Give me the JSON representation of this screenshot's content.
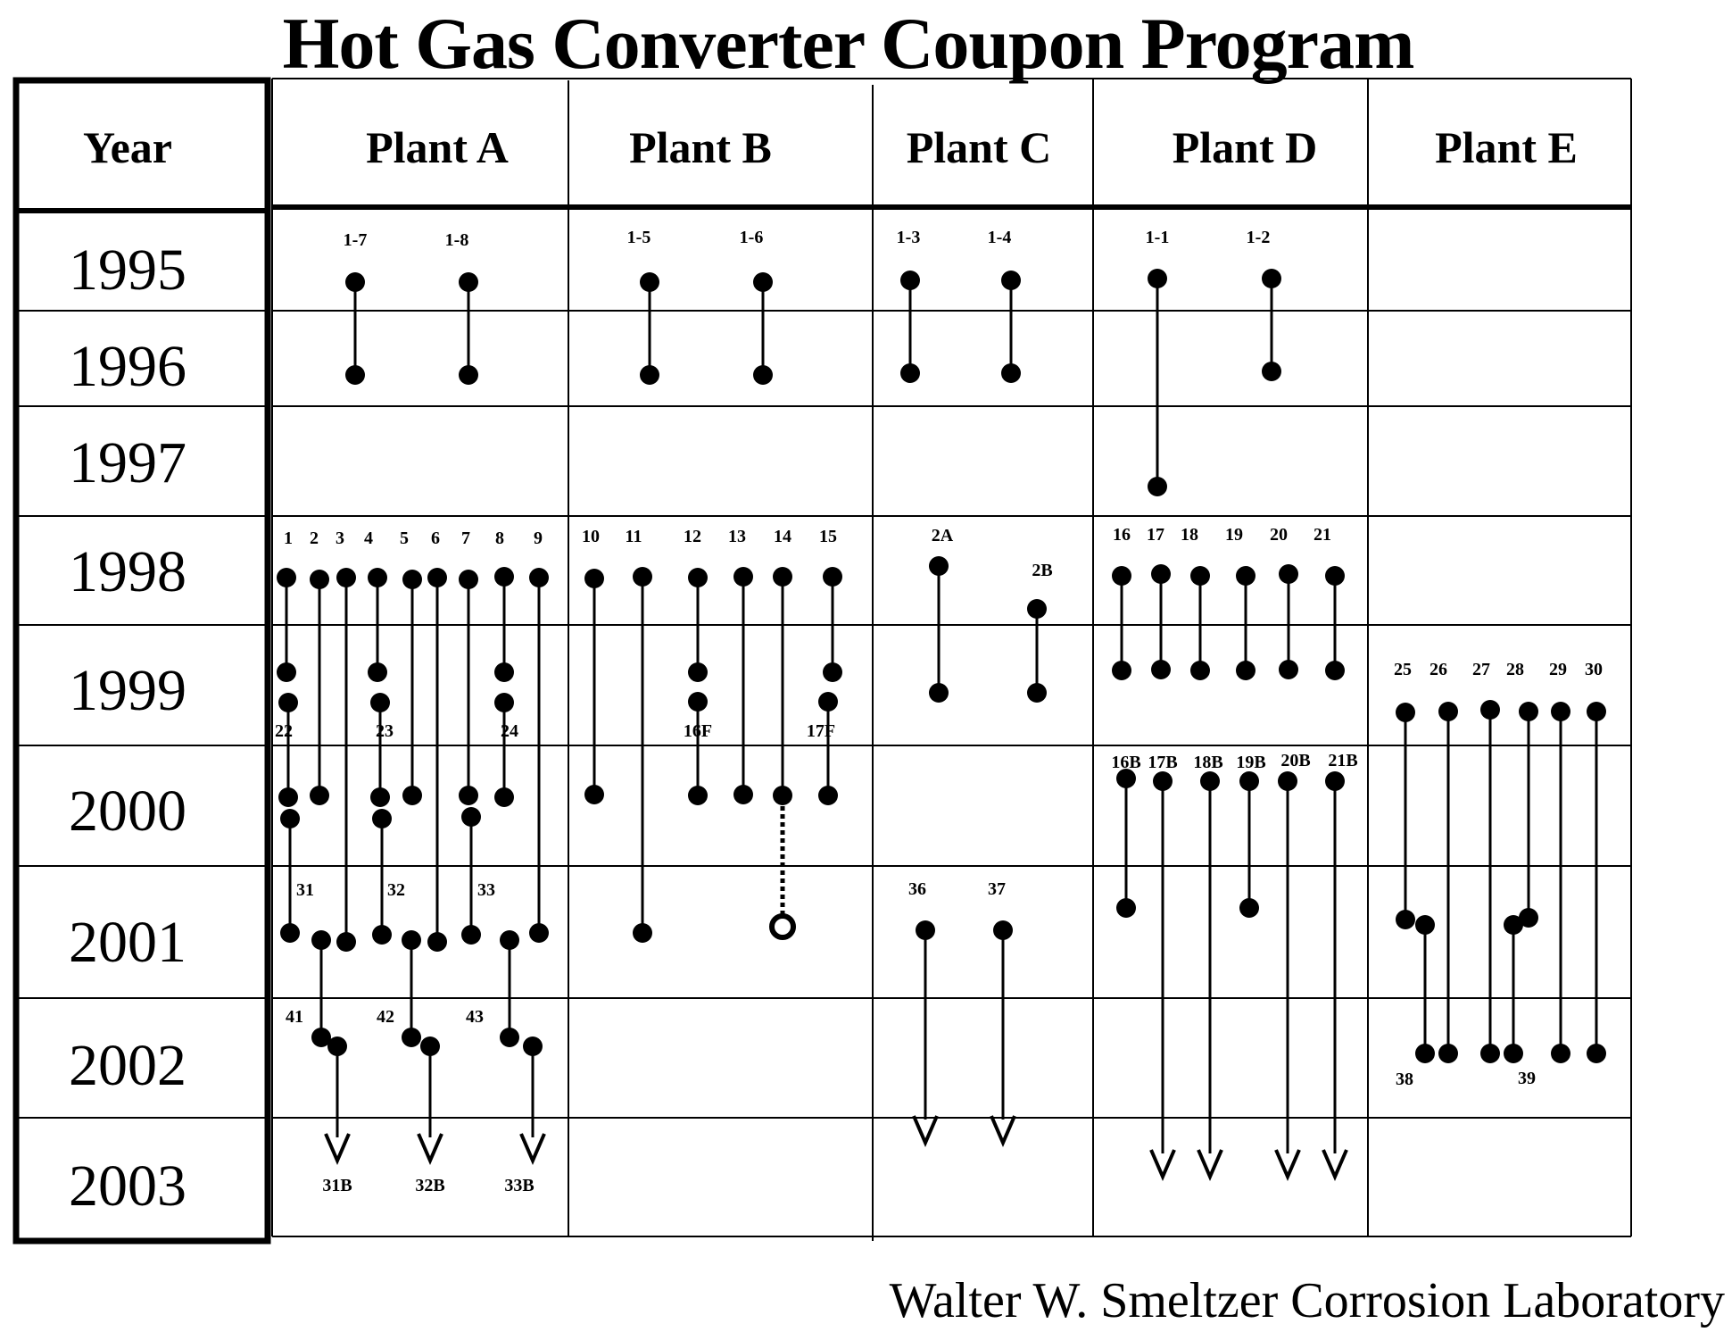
{
  "title": "Hot Gas Converter Coupon Program",
  "credit": "Walter W. Smeltzer Corrosion Laboratory",
  "year_header": "Year",
  "plants": [
    "Plant A",
    "Plant B",
    "Plant C",
    "Plant D",
    "Plant E"
  ],
  "years": [
    "1995",
    "1996",
    "1997",
    "1998",
    "1999",
    "2000",
    "2001",
    "2002",
    "2003"
  ],
  "coupons": [
    {
      "plant": "Plant A",
      "label": "1-7",
      "start": "1995",
      "end": "1996"
    },
    {
      "plant": "Plant A",
      "label": "1-8",
      "start": "1995",
      "end": "1996"
    },
    {
      "plant": "Plant B",
      "label": "1-5",
      "start": "1995",
      "end": "1996"
    },
    {
      "plant": "Plant B",
      "label": "1-6",
      "start": "1995",
      "end": "1996"
    },
    {
      "plant": "Plant C",
      "label": "1-3",
      "start": "1995",
      "end": "1996"
    },
    {
      "plant": "Plant C",
      "label": "1-4",
      "start": "1995",
      "end": "1996"
    },
    {
      "plant": "Plant D",
      "label": "1-1",
      "start": "1995",
      "end": "1997"
    },
    {
      "plant": "Plant D",
      "label": "1-2",
      "start": "1995",
      "end": "1996"
    },
    {
      "plant": "Plant A",
      "label": "1",
      "start": "1998",
      "end": "1999"
    },
    {
      "plant": "Plant A",
      "label": "2",
      "start": "1998",
      "end": "2000"
    },
    {
      "plant": "Plant A",
      "label": "3",
      "start": "1998",
      "end": "2001"
    },
    {
      "plant": "Plant A",
      "label": "4",
      "start": "1998",
      "end": "1999"
    },
    {
      "plant": "Plant A",
      "label": "5",
      "start": "1998",
      "end": "2000"
    },
    {
      "plant": "Plant A",
      "label": "6",
      "start": "1998",
      "end": "2001"
    },
    {
      "plant": "Plant A",
      "label": "7",
      "start": "1998",
      "end": "2000"
    },
    {
      "plant": "Plant A",
      "label": "8",
      "start": "1998",
      "end": "1999"
    },
    {
      "plant": "Plant A",
      "label": "9",
      "start": "1998",
      "end": "2001"
    },
    {
      "plant": "Plant A",
      "label": "22",
      "start": "1999",
      "end": "2000"
    },
    {
      "plant": "Plant A",
      "label": "23",
      "start": "1999",
      "end": "2000"
    },
    {
      "plant": "Plant A",
      "label": "24",
      "start": "1999",
      "end": "2000"
    },
    {
      "plant": "Plant A",
      "label": "31",
      "start": "2000",
      "end": "2001"
    },
    {
      "plant": "Plant A",
      "label": "32",
      "start": "2000",
      "end": "2001"
    },
    {
      "plant": "Plant A",
      "label": "33",
      "start": "2000",
      "end": "2001"
    },
    {
      "plant": "Plant A",
      "label": "41",
      "start": "2001",
      "end": "2002"
    },
    {
      "plant": "Plant A",
      "label": "42",
      "start": "2001",
      "end": "2002"
    },
    {
      "plant": "Plant A",
      "label": "43",
      "start": "2001",
      "end": "2002"
    },
    {
      "plant": "Plant A",
      "label": "31B",
      "start": "2002",
      "end": "2003",
      "ongoing": true
    },
    {
      "plant": "Plant A",
      "label": "32B",
      "start": "2002",
      "end": "2003",
      "ongoing": true
    },
    {
      "plant": "Plant A",
      "label": "33B",
      "start": "2002",
      "end": "2003",
      "ongoing": true
    },
    {
      "plant": "Plant B",
      "label": "10",
      "start": "1998",
      "end": "2000"
    },
    {
      "plant": "Plant B",
      "label": "11",
      "start": "1998",
      "end": "2001"
    },
    {
      "plant": "Plant B",
      "label": "12",
      "start": "1998",
      "end": "1999"
    },
    {
      "plant": "Plant B",
      "label": "13",
      "start": "1998",
      "end": "2000"
    },
    {
      "plant": "Plant B",
      "label": "14",
      "start": "1998",
      "end": "2000"
    },
    {
      "plant": "Plant B",
      "label": "15",
      "start": "1998",
      "end": "1999"
    },
    {
      "plant": "Plant B",
      "label": "16F",
      "start": "1999",
      "end": "2000"
    },
    {
      "plant": "Plant B",
      "label": "17F",
      "start": "1999",
      "end": "2000"
    },
    {
      "plant": "Plant C",
      "label": "2A",
      "start": "1998",
      "end": "1999"
    },
    {
      "plant": "Plant C",
      "label": "2B",
      "start": "1998",
      "end": "1999"
    },
    {
      "plant": "Plant C",
      "label": "36",
      "start": "2001",
      "end": "2003",
      "ongoing": true
    },
    {
      "plant": "Plant C",
      "label": "37",
      "start": "2001",
      "end": "2003",
      "ongoing": true
    },
    {
      "plant": "Plant D",
      "label": "16",
      "start": "1998",
      "end": "1999"
    },
    {
      "plant": "Plant D",
      "label": "17",
      "start": "1998",
      "end": "1999"
    },
    {
      "plant": "Plant D",
      "label": "18",
      "start": "1998",
      "end": "1999"
    },
    {
      "plant": "Plant D",
      "label": "19",
      "start": "1998",
      "end": "1999"
    },
    {
      "plant": "Plant D",
      "label": "20",
      "start": "1998",
      "end": "1999"
    },
    {
      "plant": "Plant D",
      "label": "21",
      "start": "1998",
      "end": "1999"
    },
    {
      "plant": "Plant D",
      "label": "16B",
      "start": "2000",
      "end": "2001"
    },
    {
      "plant": "Plant D",
      "label": "17B",
      "start": "2000",
      "end": "2003",
      "ongoing": true
    },
    {
      "plant": "Plant D",
      "label": "18B",
      "start": "2000",
      "end": "2003",
      "ongoing": true
    },
    {
      "plant": "Plant D",
      "label": "19B",
      "start": "2000",
      "end": "2001"
    },
    {
      "plant": "Plant D",
      "label": "20B",
      "start": "2000",
      "end": "2003",
      "ongoing": true
    },
    {
      "plant": "Plant D",
      "label": "21B",
      "start": "2000",
      "end": "2003",
      "ongoing": true
    },
    {
      "plant": "Plant E",
      "label": "25",
      "start": "1999",
      "end": "2001"
    },
    {
      "plant": "Plant E",
      "label": "26",
      "start": "1999",
      "end": "2002"
    },
    {
      "plant": "Plant E",
      "label": "27",
      "start": "1999",
      "end": "2002"
    },
    {
      "plant": "Plant E",
      "label": "28",
      "start": "1999",
      "end": "2001"
    },
    {
      "plant": "Plant E",
      "label": "29",
      "start": "1999",
      "end": "2002"
    },
    {
      "plant": "Plant E",
      "label": "30",
      "start": "1999",
      "end": "2002"
    },
    {
      "plant": "Plant E",
      "label": "38",
      "start": "2001",
      "end": "2002"
    },
    {
      "plant": "Plant E",
      "label": "39",
      "start": "2001",
      "end": "2002"
    }
  ]
}
